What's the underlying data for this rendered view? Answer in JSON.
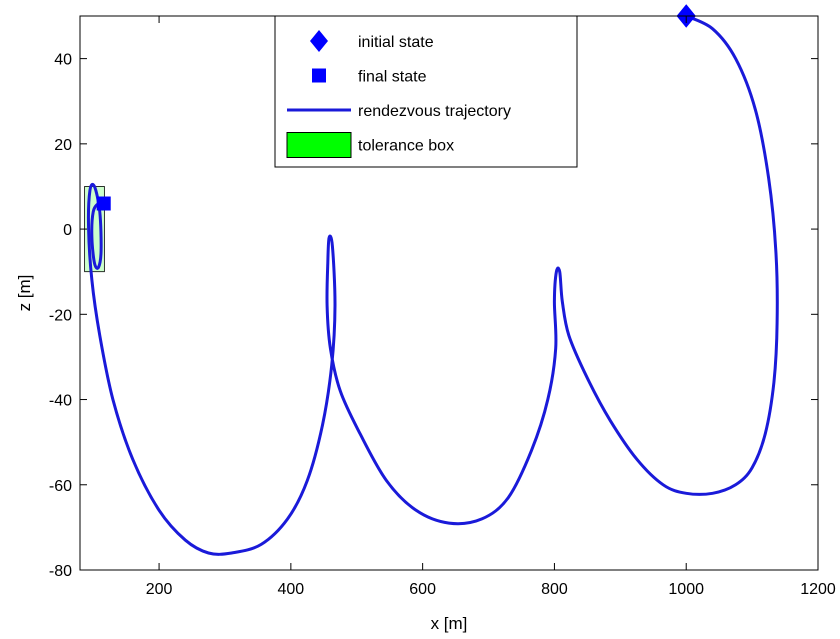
{
  "chart_data": {
    "type": "line",
    "xlabel": "x [m]",
    "ylabel": "z [m]",
    "xlim": [
      80,
      1200
    ],
    "ylim": [
      -80,
      50
    ],
    "xticks": [
      200,
      400,
      600,
      800,
      1000,
      1200
    ],
    "yticks": [
      -80,
      -60,
      -40,
      -20,
      0,
      20,
      40
    ],
    "grid": false,
    "legend_position": "top-center",
    "legend": [
      {
        "label": "initial state",
        "marker": "diamond",
        "color": "#0000ff"
      },
      {
        "label": "final state",
        "marker": "square",
        "color": "#0000ff"
      },
      {
        "label": "rendezvous trajectory",
        "marker": "line",
        "color": "#0000ff"
      },
      {
        "label": "tolerance box",
        "marker": "box",
        "color": "#00ff00"
      }
    ],
    "initial_state": {
      "x": 1000,
      "z": 50
    },
    "final_state": {
      "x": 116,
      "z": 6
    },
    "tolerance_box": {
      "x_min": 87,
      "x_max": 117,
      "z_min": -10,
      "z_max": 10,
      "color": "#ccffcc"
    },
    "series": [
      {
        "color": "#1a1ad9",
        "points": [
          [
            1000,
            50
          ],
          [
            1040,
            47
          ],
          [
            1075,
            40
          ],
          [
            1105,
            28
          ],
          [
            1125,
            12
          ],
          [
            1136,
            -5
          ],
          [
            1138,
            -22
          ],
          [
            1133,
            -36
          ],
          [
            1120,
            -48
          ],
          [
            1100,
            -56
          ],
          [
            1075,
            -60
          ],
          [
            1040,
            -62
          ],
          [
            1000,
            -62
          ],
          [
            965,
            -60
          ],
          [
            925,
            -54
          ],
          [
            885,
            -45
          ],
          [
            850,
            -35
          ],
          [
            822,
            -25
          ],
          [
            812,
            -17
          ],
          [
            808,
            -10
          ],
          [
            803,
            -10
          ],
          [
            800,
            -17
          ],
          [
            802,
            -28
          ],
          [
            790,
            -40
          ],
          [
            765,
            -52
          ],
          [
            730,
            -63
          ],
          [
            690,
            -68
          ],
          [
            640,
            -69
          ],
          [
            590,
            -66
          ],
          [
            545,
            -59
          ],
          [
            505,
            -48
          ],
          [
            475,
            -38
          ],
          [
            460,
            -28
          ],
          [
            455,
            -18
          ],
          [
            456,
            -8
          ],
          [
            458,
            -2
          ],
          [
            463,
            -4
          ],
          [
            467,
            -18
          ],
          [
            462,
            -32
          ],
          [
            448,
            -46
          ],
          [
            425,
            -59
          ],
          [
            395,
            -68
          ],
          [
            355,
            -74
          ],
          [
            310,
            -76
          ],
          [
            275,
            -76
          ],
          [
            240,
            -73
          ],
          [
            200,
            -66
          ],
          [
            160,
            -54
          ],
          [
            130,
            -40
          ],
          [
            110,
            -25
          ],
          [
            98,
            -12
          ],
          [
            93,
            0
          ],
          [
            95,
            9
          ],
          [
            102,
            10
          ],
          [
            110,
            4
          ],
          [
            112,
            -5
          ],
          [
            108,
            -9
          ],
          [
            102,
            -8
          ],
          [
            98,
            -2
          ],
          [
            100,
            4
          ],
          [
            108,
            6
          ],
          [
            116,
            6
          ]
        ]
      }
    ]
  },
  "colors": {
    "trajectory": "#1a1ad9",
    "marker": "#0000ff",
    "tolerance_fill": "#ccffcc",
    "legend_box_fill": "#00ff00"
  }
}
